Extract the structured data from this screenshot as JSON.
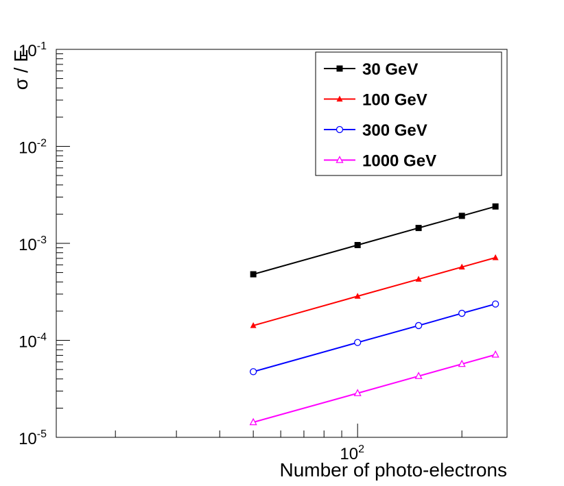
{
  "chart_data": {
    "type": "line",
    "title": "",
    "xlabel": "Number of photo-electrons",
    "ylabel": "σ / E",
    "xscale": "log",
    "yscale": "log",
    "xlim": [
      13.5,
      270
    ],
    "ylim": [
      1e-05,
      0.1
    ],
    "grid": false,
    "legend_position": "top-right",
    "x_tick_labels": [
      {
        "value": 100,
        "base": "10",
        "exp": "2"
      }
    ],
    "y_tick_labels": [
      {
        "value": 1e-05,
        "base": "10",
        "exp": "-5"
      },
      {
        "value": 0.0001,
        "base": "10",
        "exp": "-4"
      },
      {
        "value": 0.001,
        "base": "10",
        "exp": "-3"
      },
      {
        "value": 0.01,
        "base": "10",
        "exp": "-2"
      },
      {
        "value": 0.1,
        "base": "10",
        "exp": "-1"
      }
    ],
    "x": [
      50,
      100,
      150,
      200,
      250
    ],
    "series": [
      {
        "name": "30 GeV",
        "color": "#000000",
        "marker": "filled-square",
        "values": [
          0.00048,
          0.00096,
          0.00144,
          0.00192,
          0.0024
        ]
      },
      {
        "name": "100 GeV",
        "color": "#ff0000",
        "marker": "filled-triangle",
        "values": [
          0.000142,
          0.000285,
          0.000427,
          0.00057,
          0.000712
        ]
      },
      {
        "name": "300 GeV",
        "color": "#0000ff",
        "marker": "open-circle",
        "values": [
          4.75e-05,
          9.5e-05,
          0.000142,
          0.00019,
          0.000237
        ]
      },
      {
        "name": "1000 GeV",
        "color": "#ff00ff",
        "marker": "open-triangle",
        "values": [
          1.43e-05,
          2.85e-05,
          4.28e-05,
          5.7e-05,
          7.12e-05
        ]
      }
    ]
  }
}
